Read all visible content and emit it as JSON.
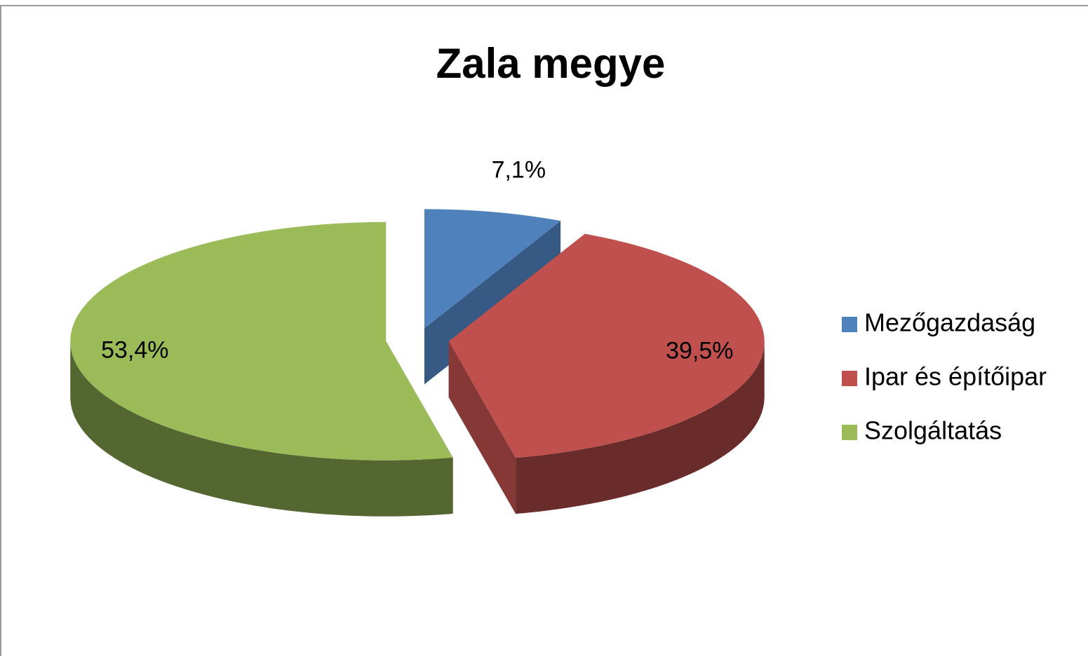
{
  "chart_data": {
    "type": "pie",
    "title": "Zala megye",
    "categories": [
      "Mezőgazdaság",
      "Ipar és építőipar",
      "Szolgáltatás"
    ],
    "values": [
      7.1,
      39.5,
      53.4
    ],
    "value_labels": [
      "7,1%",
      "39,5%",
      "53,4%"
    ],
    "colors": [
      "#4f81bd",
      "#c0504d",
      "#9bbb59"
    ],
    "legend": "right"
  }
}
